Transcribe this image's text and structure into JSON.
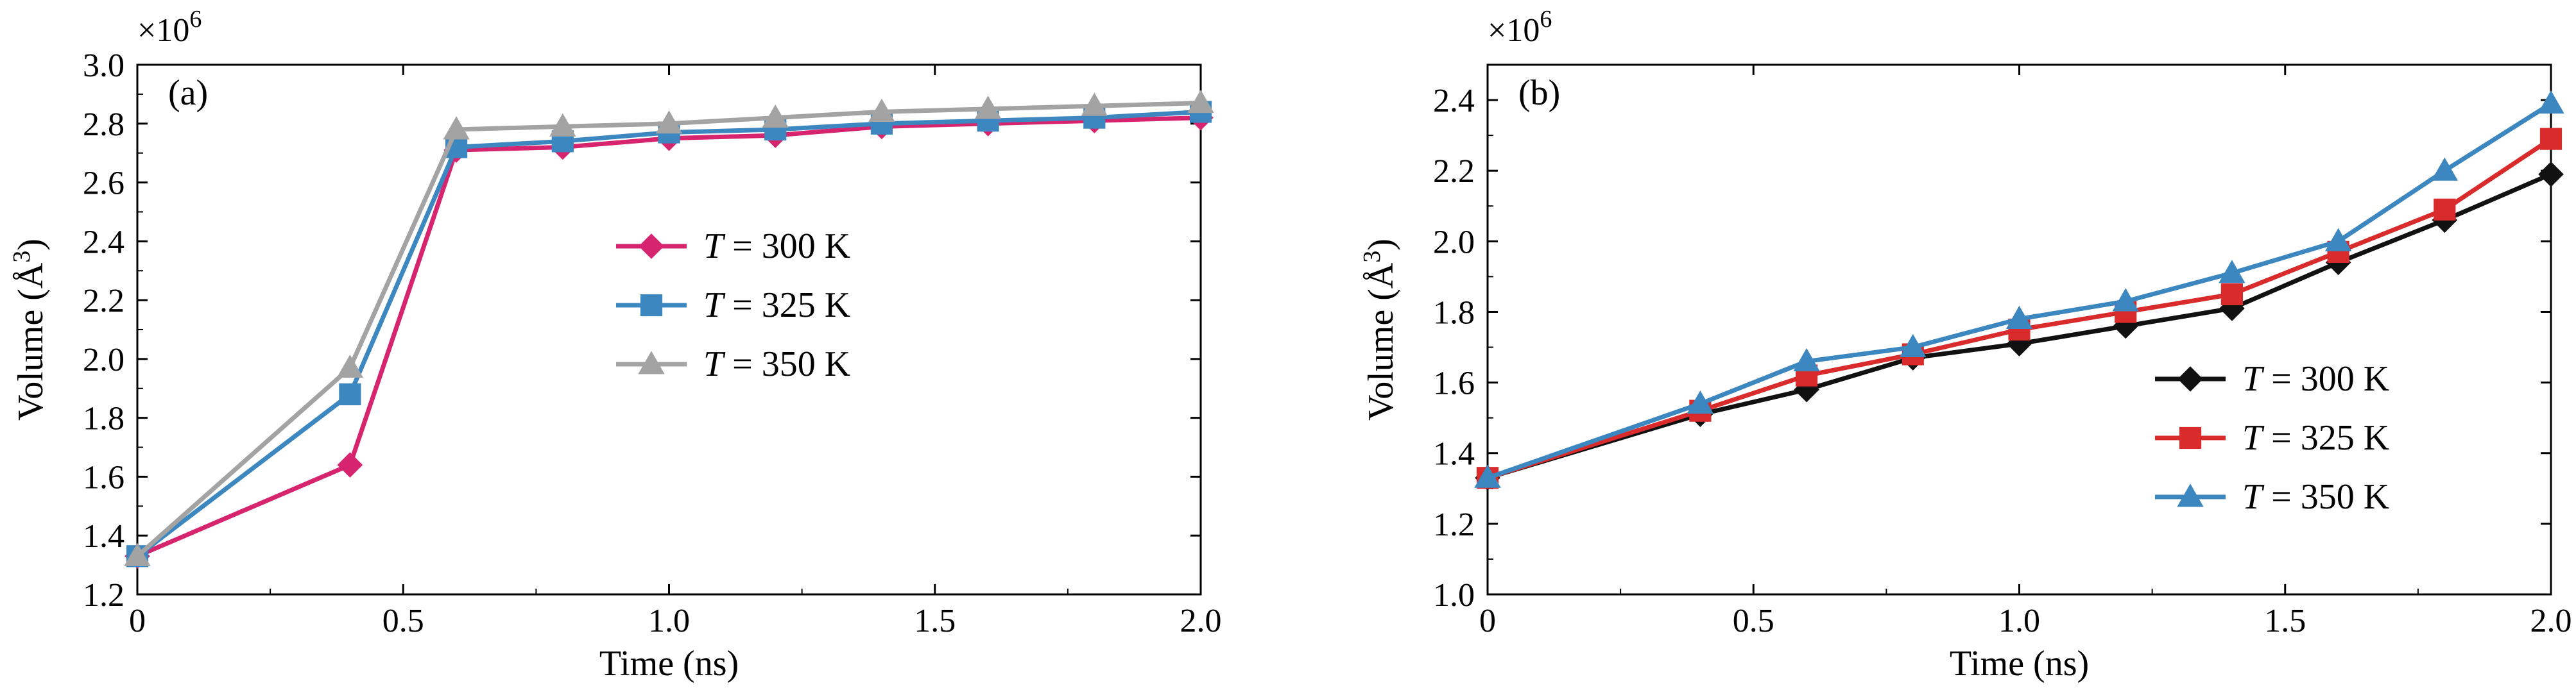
{
  "chart_data": [
    {
      "type": "line",
      "panel_label": "(a)",
      "xlabel": "Time (ns)",
      "ylabel_text": "Volume (Å",
      "ylabel_sup": "3",
      "ylabel_close": ")",
      "multiplier_base": "×10",
      "multiplier_exp": "6",
      "xlim": [
        0,
        2.0
      ],
      "ylim": [
        1.2,
        3.0
      ],
      "xticks": [
        "0",
        "0.5",
        "1.0",
        "1.5",
        "2.0"
      ],
      "yticks": [
        "1.2",
        "1.4",
        "1.6",
        "1.8",
        "2.0",
        "2.2",
        "2.4",
        "2.6",
        "2.8",
        "3.0"
      ],
      "legend_position": "center",
      "series": [
        {
          "name_var": "T",
          "name_rest": " = 300 K",
          "color": "#d6246e",
          "marker": "diamond",
          "x": [
            0,
            0.4,
            0.6,
            0.8,
            1.0,
            1.2,
            1.4,
            1.6,
            1.8,
            2.0
          ],
          "y": [
            1.33,
            1.64,
            2.71,
            2.72,
            2.75,
            2.76,
            2.79,
            2.8,
            2.81,
            2.82
          ]
        },
        {
          "name_var": "T",
          "name_rest": " = 325 K",
          "color": "#3d87c1",
          "marker": "square",
          "x": [
            0,
            0.4,
            0.6,
            0.8,
            1.0,
            1.2,
            1.4,
            1.6,
            1.8,
            2.0
          ],
          "y": [
            1.33,
            1.88,
            2.72,
            2.74,
            2.77,
            2.78,
            2.8,
            2.81,
            2.82,
            2.84
          ]
        },
        {
          "name_var": "T",
          "name_rest": " = 350 K",
          "color": "#a3a3a3",
          "marker": "triangle",
          "x": [
            0,
            0.4,
            0.6,
            0.8,
            1.0,
            1.2,
            1.4,
            1.6,
            1.8,
            2.0
          ],
          "y": [
            1.33,
            1.97,
            2.78,
            2.79,
            2.8,
            2.82,
            2.84,
            2.85,
            2.86,
            2.87
          ]
        }
      ]
    },
    {
      "type": "line",
      "panel_label": "(b)",
      "xlabel": "Time (ns)",
      "ylabel_text": "Volume (Å",
      "ylabel_sup": "3",
      "ylabel_close": ")",
      "multiplier_base": "×10",
      "multiplier_exp": "6",
      "xlim": [
        0,
        2.0
      ],
      "ylim": [
        1.0,
        2.5
      ],
      "xticks": [
        "0",
        "0.5",
        "1.0",
        "1.5",
        "2.0"
      ],
      "yticks": [
        "1.0",
        "1.2",
        "1.4",
        "1.6",
        "1.8",
        "2.0",
        "2.2",
        "2.4"
      ],
      "legend_position": "lower-right",
      "series": [
        {
          "name_var": "T",
          "name_rest": " = 300 K",
          "color": "#111111",
          "marker": "diamond",
          "x": [
            0,
            0.4,
            0.6,
            0.8,
            1.0,
            1.2,
            1.4,
            1.6,
            1.8,
            2.0
          ],
          "y": [
            1.33,
            1.51,
            1.58,
            1.67,
            1.71,
            1.76,
            1.81,
            1.94,
            2.06,
            2.19
          ]
        },
        {
          "name_var": "T",
          "name_rest": " = 325 K",
          "color": "#d92b2b",
          "marker": "square",
          "x": [
            0,
            0.4,
            0.6,
            0.8,
            1.0,
            1.2,
            1.4,
            1.6,
            1.8,
            2.0
          ],
          "y": [
            1.33,
            1.52,
            1.62,
            1.68,
            1.75,
            1.8,
            1.85,
            1.97,
            2.09,
            2.29
          ]
        },
        {
          "name_var": "T",
          "name_rest": " = 350 K",
          "color": "#3d87c1",
          "marker": "triangle",
          "x": [
            0,
            0.4,
            0.6,
            0.8,
            1.0,
            1.2,
            1.4,
            1.6,
            1.8,
            2.0
          ],
          "y": [
            1.33,
            1.54,
            1.66,
            1.7,
            1.78,
            1.83,
            1.91,
            2.0,
            2.2,
            2.39
          ]
        }
      ]
    }
  ]
}
